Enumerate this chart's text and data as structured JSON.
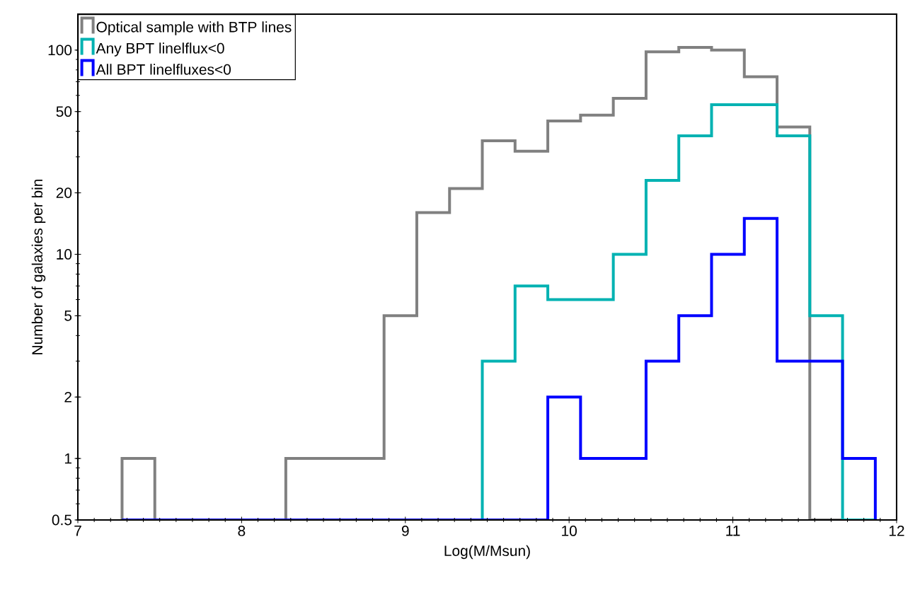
{
  "chart_data": {
    "type": "histogram",
    "xlabel": "Log(M/Msun)",
    "ylabel": "Number of galaxies per bin",
    "bins": [
      7.27,
      7.47,
      7.67,
      7.87,
      8.07,
      8.27,
      8.47,
      8.67,
      8.87,
      9.07,
      9.27,
      9.47,
      9.67,
      9.87,
      10.07,
      10.27,
      10.47,
      10.67,
      10.87,
      11.07,
      11.27,
      11.47,
      11.67,
      11.87
    ],
    "series": [
      {
        "name": "Optical sample with BTP lines",
        "color": "#808080",
        "values": [
          1,
          null,
          null,
          null,
          null,
          1,
          1,
          1,
          5,
          16,
          21,
          36,
          32,
          45,
          48,
          58,
          98,
          103,
          100,
          74,
          42,
          null,
          null
        ]
      },
      {
        "name": "Any BPT linelflux<0",
        "color": "#00b2b2",
        "values": [
          null,
          null,
          null,
          null,
          null,
          null,
          null,
          null,
          null,
          null,
          null,
          3,
          7,
          6,
          6,
          10,
          23,
          38,
          54,
          54,
          38,
          5,
          null
        ]
      },
      {
        "name": "All BPT linelfluxes<0",
        "color": "#0000ff",
        "values": [
          null,
          null,
          null,
          null,
          null,
          null,
          null,
          null,
          null,
          null,
          null,
          null,
          null,
          2,
          1,
          1,
          3,
          5,
          10,
          15,
          3,
          3,
          1
        ]
      }
    ],
    "xlim": [
      7,
      12
    ],
    "xticks": [
      7,
      8,
      9,
      10,
      11,
      12
    ],
    "ylim": [
      0.5,
      150
    ],
    "yticks": [
      0.5,
      1,
      2,
      5,
      10,
      20,
      50,
      100
    ],
    "log": "y",
    "legend": "top left"
  }
}
